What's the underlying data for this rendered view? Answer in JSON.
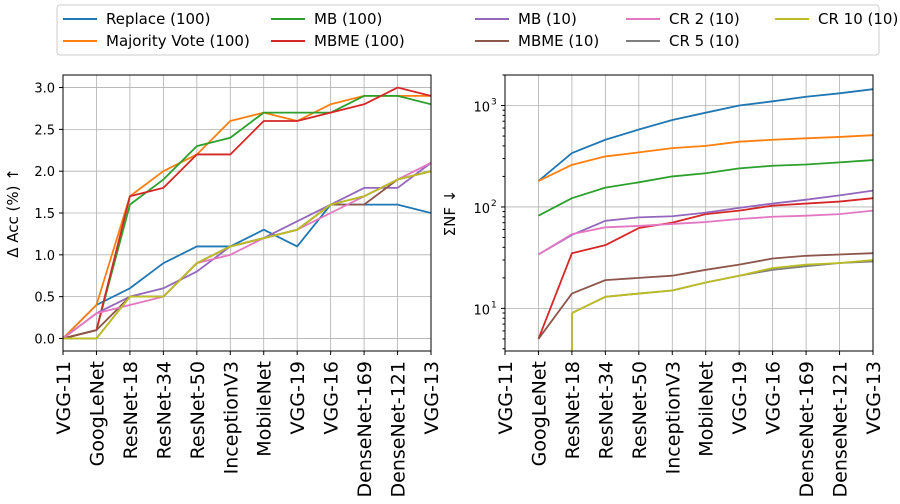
{
  "colors": {
    "Replace (100)": "#1f77b4",
    "Majority Vote (100)": "#ff7f0e",
    "MB (100)": "#2ca02c",
    "MBME (100)": "#d62728",
    "MB (10)": "#9467bd",
    "MBME (10)": "#8c564b",
    "CR 2 (10)": "#e377c2",
    "CR 5 (10)": "#7f7f7f",
    "CR 10 (10)": "#bcbd22"
  },
  "legend": [
    "Replace (100)",
    "Majority Vote (100)",
    "MB (100)",
    "MBME (100)",
    "MB (10)",
    "MBME (10)",
    "CR 2 (10)",
    "CR 5 (10)",
    "CR 10 (10)"
  ],
  "chart_data": [
    {
      "type": "line",
      "ylabel": "Δ Acc (%)  ↑",
      "yscale": "linear",
      "ylim": [
        -0.15,
        3.15
      ],
      "yticks": [
        "0.0",
        "0.5",
        "1.0",
        "1.5",
        "2.0",
        "2.5",
        "3.0"
      ],
      "grid": true,
      "categories": [
        "VGG-11",
        "GoogLeNet",
        "ResNet-18",
        "ResNet-34",
        "ResNet-50",
        "InceptionV3",
        "MobileNet",
        "VGG-19",
        "VGG-16",
        "DenseNet-169",
        "DenseNet-121",
        "VGG-13"
      ],
      "series": [
        {
          "name": "Replace (100)",
          "values": [
            0,
            0.4,
            0.6,
            0.9,
            1.1,
            1.1,
            1.3,
            1.1,
            1.6,
            1.6,
            1.6,
            1.5
          ]
        },
        {
          "name": "Majority Vote (100)",
          "values": [
            0,
            0.4,
            1.7,
            2.0,
            2.2,
            2.6,
            2.7,
            2.6,
            2.8,
            2.9,
            2.9,
            2.9
          ]
        },
        {
          "name": "MB (100)",
          "values": [
            0,
            0.1,
            1.6,
            1.9,
            2.3,
            2.4,
            2.7,
            2.7,
            2.7,
            2.9,
            2.9,
            2.8
          ]
        },
        {
          "name": "MBME (100)",
          "values": [
            0,
            0.1,
            1.7,
            1.8,
            2.2,
            2.2,
            2.6,
            2.6,
            2.7,
            2.8,
            3.0,
            2.9
          ]
        },
        {
          "name": "MB (10)",
          "values": [
            0,
            0.3,
            0.5,
            0.6,
            0.8,
            1.1,
            1.2,
            1.4,
            1.6,
            1.8,
            1.8,
            2.1
          ]
        },
        {
          "name": "MBME (10)",
          "values": [
            0,
            0.1,
            0.5,
            0.5,
            0.9,
            1.1,
            1.2,
            1.3,
            1.6,
            1.6,
            1.9,
            2.0
          ]
        },
        {
          "name": "CR 2 (10)",
          "values": [
            0,
            0.3,
            0.4,
            0.5,
            0.9,
            1.0,
            1.2,
            1.3,
            1.5,
            1.7,
            1.9,
            2.1
          ]
        },
        {
          "name": "CR 5 (10)",
          "values": [
            0,
            0,
            0.5,
            0.5,
            0.9,
            1.1,
            1.2,
            1.3,
            1.6,
            1.7,
            1.9,
            2.0
          ]
        },
        {
          "name": "CR 10 (10)",
          "values": [
            0,
            0,
            0.5,
            0.5,
            0.9,
            1.1,
            1.2,
            1.3,
            1.6,
            1.7,
            1.9,
            2.0
          ]
        }
      ]
    },
    {
      "type": "line",
      "ylabel": "ΣNF  ↓",
      "yscale": "log",
      "ylim": [
        3.8,
        2000
      ],
      "yticks": [
        10,
        100,
        1000
      ],
      "yticklabels": [
        "10",
        "10",
        "10"
      ],
      "ytick_exponents": [
        "1",
        "2",
        "3"
      ],
      "grid": true,
      "categories": [
        "VGG-11",
        "GoogLeNet",
        "ResNet-18",
        "ResNet-34",
        "ResNet-50",
        "InceptionV3",
        "MobileNet",
        "VGG-19",
        "VGG-16",
        "DenseNet-169",
        "DenseNet-121",
        "VGG-13"
      ],
      "series": [
        {
          "name": "Replace (100)",
          "values": [
            null,
            180,
            340,
            460,
            580,
            720,
            850,
            1000,
            1100,
            1220,
            1320,
            1450
          ]
        },
        {
          "name": "Majority Vote (100)",
          "values": [
            null,
            180,
            260,
            315,
            345,
            380,
            400,
            440,
            460,
            475,
            490,
            510
          ]
        },
        {
          "name": "MB (100)",
          "values": [
            null,
            82,
            122,
            155,
            175,
            200,
            215,
            240,
            255,
            262,
            275,
            290
          ]
        },
        {
          "name": "MBME (100)",
          "values": [
            null,
            5,
            35,
            42,
            62,
            70,
            85,
            92,
            103,
            108,
            113,
            122
          ]
        },
        {
          "name": "MB (10)",
          "values": [
            null,
            34,
            53,
            73,
            79,
            81,
            88,
            98,
            108,
            118,
            130,
            145
          ]
        },
        {
          "name": "MBME (10)",
          "values": [
            null,
            5,
            14,
            19,
            20,
            21,
            24,
            27,
            31,
            33,
            34,
            35
          ]
        },
        {
          "name": "CR 2 (10)",
          "values": [
            null,
            34,
            54,
            63,
            65,
            68,
            71,
            76,
            80,
            82,
            85,
            92
          ]
        },
        {
          "name": "CR 5 (10)",
          "values": [
            null,
            null,
            9,
            13,
            14,
            15,
            18,
            21,
            24,
            26,
            28,
            29
          ]
        },
        {
          "name": "CR 10 (10)",
          "values": [
            null,
            null,
            9,
            13,
            14,
            15,
            18,
            21,
            25,
            27,
            28,
            30
          ]
        }
      ]
    }
  ]
}
